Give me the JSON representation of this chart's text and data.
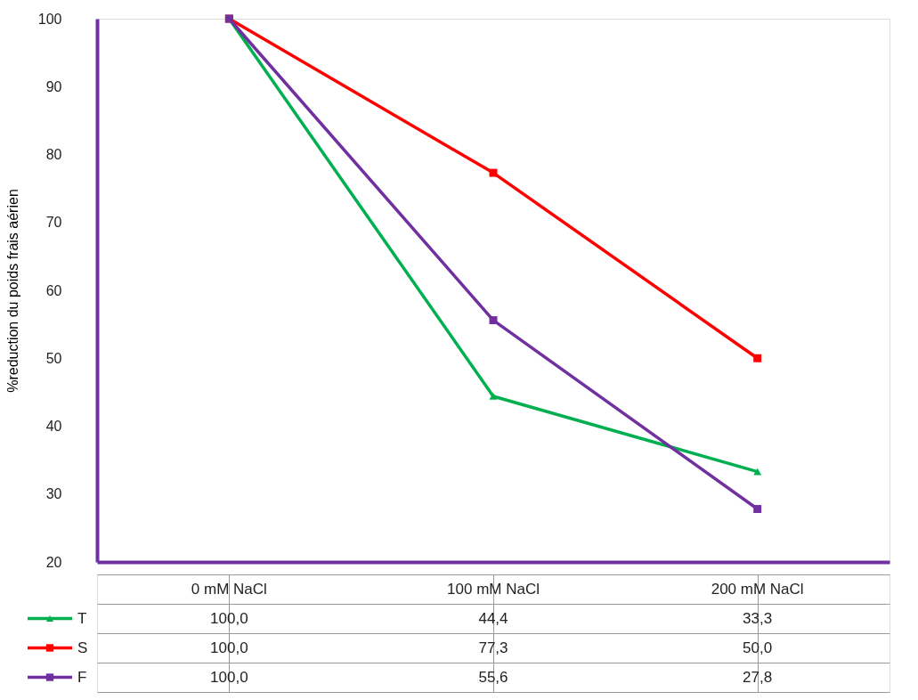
{
  "chart_data": {
    "type": "line",
    "ylabel": "%reduction du poids frais aérien",
    "categories": [
      "0 mM NaCl",
      "100 mM NaCl",
      "200 mM NaCl"
    ],
    "series": [
      {
        "name": "T",
        "color": "#00b050",
        "marker": "triangle",
        "values": [
          100.0,
          44.4,
          33.3
        ],
        "value_labels": [
          "100,0",
          "44,4",
          "33,3"
        ]
      },
      {
        "name": "S",
        "color": "#ff0000",
        "marker": "square",
        "values": [
          100.0,
          77.3,
          50.0
        ],
        "value_labels": [
          "100,0",
          "77,3",
          "50,0"
        ]
      },
      {
        "name": "F",
        "color": "#7030a0",
        "marker": "square",
        "values": [
          100.0,
          55.6,
          27.8
        ],
        "value_labels": [
          "100,0",
          "55,6",
          "27,8"
        ]
      }
    ],
    "ylim": [
      20,
      100
    ],
    "yticks": [
      20,
      30,
      40,
      50,
      60,
      70,
      80,
      90,
      100
    ],
    "grid": false,
    "legend": "bottom"
  }
}
